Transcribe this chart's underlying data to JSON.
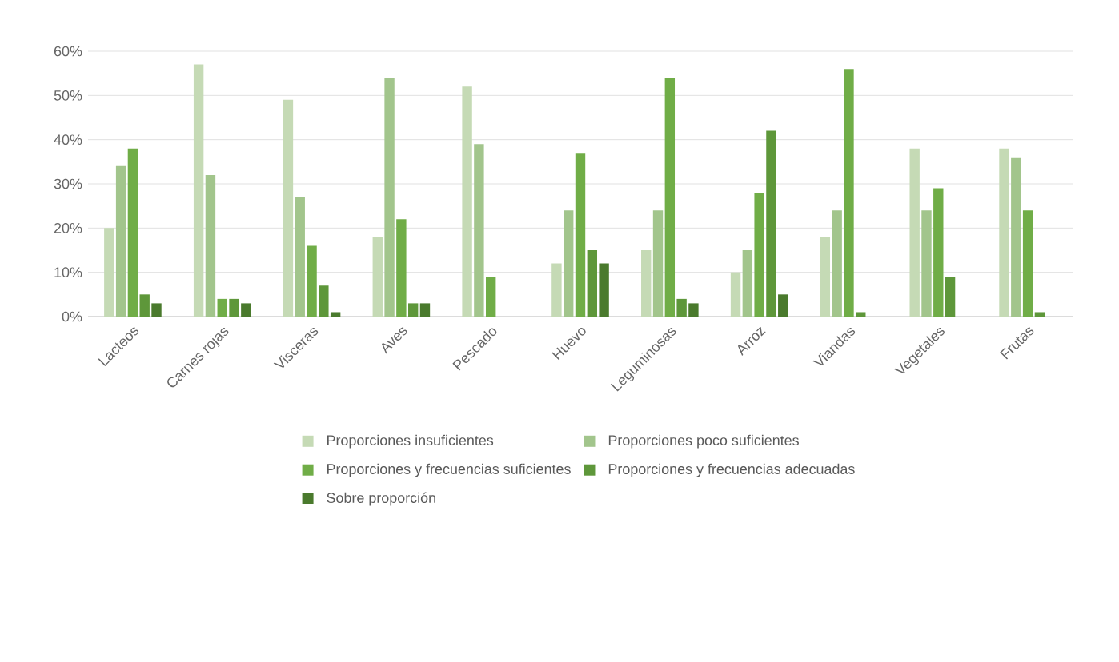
{
  "chart_data": {
    "type": "bar",
    "categories": [
      "Lacteos",
      "Carnes rojas",
      "Visceras",
      "Aves",
      "Pescado",
      "Huevo",
      "Leguminosas",
      "Arroz",
      "Viandas",
      "Vegetales",
      "Frutas"
    ],
    "series": [
      {
        "name": "Proporciones insuficientes",
        "color": "#c5dab5",
        "values": [
          20,
          57,
          49,
          18,
          52,
          12,
          15,
          10,
          18,
          38,
          38
        ]
      },
      {
        "name": "Proporciones poco suficientes",
        "color": "#a2c58c",
        "values": [
          34,
          32,
          27,
          54,
          39,
          24,
          24,
          15,
          24,
          24,
          36
        ]
      },
      {
        "name": "Proporciones y frecuencias suficientes",
        "color": "#70ad47",
        "values": [
          38,
          4,
          16,
          22,
          9,
          37,
          54,
          28,
          56,
          29,
          24
        ]
      },
      {
        "name": "Proporciones y frecuencias adecuadas",
        "color": "#5e973a",
        "values": [
          5,
          4,
          7,
          3,
          0,
          15,
          4,
          42,
          1,
          9,
          1
        ]
      },
      {
        "name": "Sobre proporción",
        "color": "#4a7a2d",
        "values": [
          3,
          3,
          1,
          3,
          0,
          12,
          3,
          5,
          0,
          0,
          0
        ]
      }
    ],
    "ylim": [
      0,
      60
    ],
    "yticks": [
      {
        "value": 0,
        "label": "0%"
      },
      {
        "value": 10,
        "label": "10%"
      },
      {
        "value": 20,
        "label": "20%"
      },
      {
        "value": 30,
        "label": "30%"
      },
      {
        "value": 40,
        "label": "40%"
      },
      {
        "value": 50,
        "label": "50%"
      },
      {
        "value": 60,
        "label": "60%"
      }
    ],
    "grid": "y",
    "legend": "bottom"
  }
}
